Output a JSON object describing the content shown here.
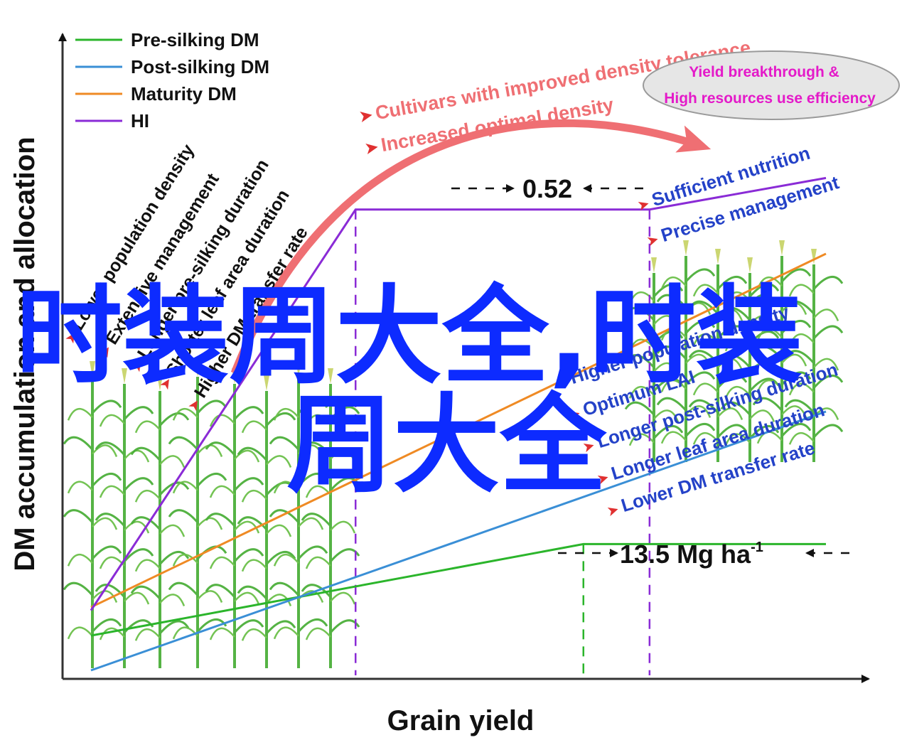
{
  "chart_data": {
    "type": "line",
    "xlabel": "Grain yield",
    "ylabel": "DM accumulation and allocation",
    "legend": {
      "placement": "top-left",
      "entries": [
        {
          "name": "Pre-silking DM",
          "color": "#2bb52b"
        },
        {
          "name": "Post-silking DM",
          "color": "#3a8fd6"
        },
        {
          "name": "Maturity DM",
          "color": "#ef8a24"
        },
        {
          "name": "HI",
          "color": "#8a2bd6"
        }
      ]
    },
    "grid": false,
    "series": [
      {
        "name": "Pre-silking DM",
        "color": "#2bb52b",
        "points": [
          [
            0.0,
            0.055
          ],
          [
            0.67,
            0.2
          ],
          [
            1.0,
            0.2
          ]
        ]
      },
      {
        "name": "Post-silking DM",
        "color": "#3a8fd6",
        "points": [
          [
            0.0,
            0.0
          ],
          [
            1.0,
            0.41
          ]
        ]
      },
      {
        "name": "Maturity DM",
        "color": "#ef8a24",
        "points": [
          [
            0.0,
            0.1
          ],
          [
            1.0,
            0.66
          ]
        ]
      },
      {
        "name": "HI",
        "color": "#8a2bd6",
        "points": [
          [
            0.0,
            0.095
          ],
          [
            0.36,
            0.73
          ],
          [
            0.76,
            0.73
          ],
          [
            1.0,
            0.78
          ]
        ]
      }
    ],
    "reference_lines": [
      {
        "x": 0.36,
        "color": "#8a2bd6",
        "style": "dashed"
      },
      {
        "x": 0.76,
        "color": "#8a2bd6",
        "style": "dashed"
      },
      {
        "x": 0.67,
        "color": "#2bb52b",
        "style": "dashed"
      }
    ],
    "annotations": {
      "hi_value": "0.52",
      "yield_value": "13.5 Mg ha",
      "yield_unit_sup": "-1",
      "left_factors": [
        "Lower population density",
        "Extensive management",
        "Longer pre-silking duration",
        "Shorter leaf area duration",
        "Higher DM transfer rate"
      ],
      "right_factors": [
        "Sufficient nutrition",
        "Precise management",
        "Higher population density",
        "Optimum LAI",
        "Longer post-silking duration",
        "Longer leaf area duration",
        "Lower DM transfer rate"
      ],
      "arrow_labels": [
        "Cultivars with improved density tolerance",
        "Increased optimal density"
      ],
      "ellipse_lines": [
        "Yield breakthrough &",
        "High resources use efficiency"
      ]
    },
    "overlay_text": [
      "时装周大全,时装",
      "周大全"
    ]
  },
  "colors": {
    "pre": "#2bb52b",
    "post": "#3a8fd6",
    "maturity": "#ef8a24",
    "hi": "#8a2bd6",
    "red": "#ef6f73",
    "blue_text": "#2442c8",
    "magenta": "#e41ac9",
    "watermark": "#0d2bff",
    "plant": "#4caf3a"
  }
}
